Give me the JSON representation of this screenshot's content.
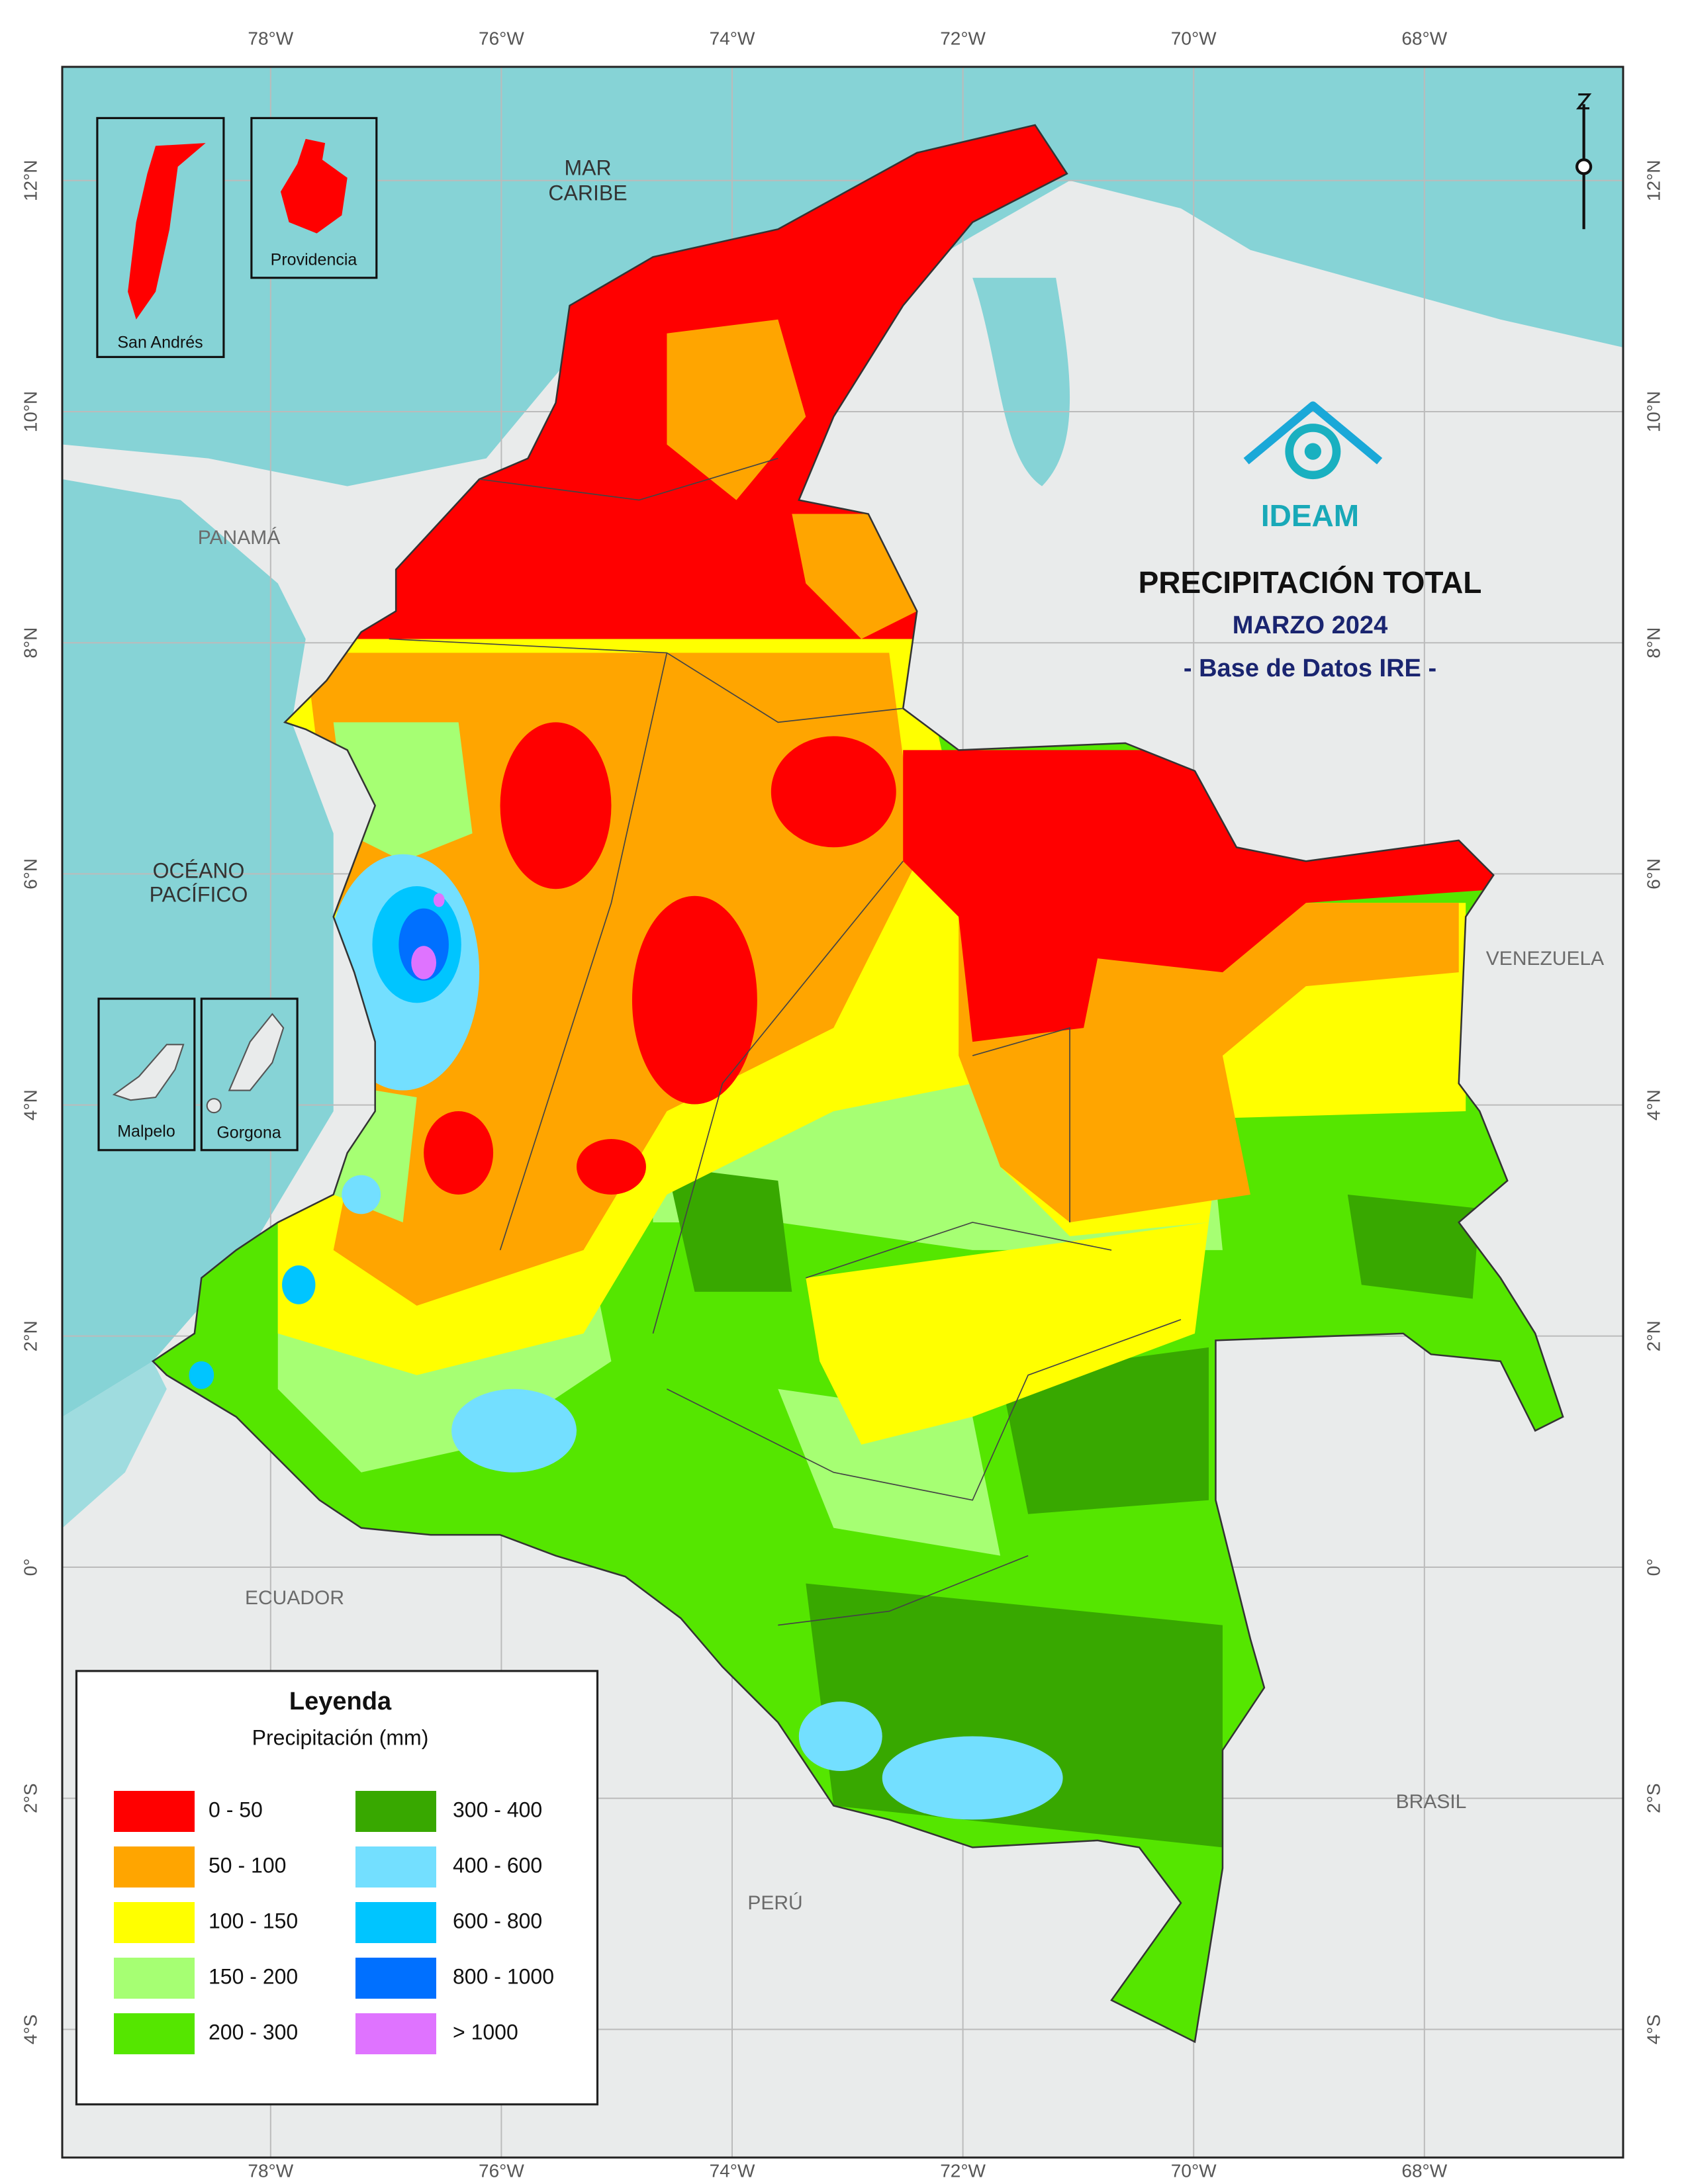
{
  "map": {
    "title": "PRECIPITACIÓN TOTAL",
    "subtitle": "MARZO 2024",
    "source": "- Base de Datos IRE -",
    "logo": "IDEAM",
    "lon_ticks": [
      {
        "value": -78,
        "label": "78°W"
      },
      {
        "value": -76,
        "label": "76°W"
      },
      {
        "value": -74,
        "label": "74°W"
      },
      {
        "value": -72,
        "label": "72°W"
      },
      {
        "value": -70,
        "label": "70°W"
      },
      {
        "value": -68,
        "label": "68°W"
      }
    ],
    "lat_ticks": [
      {
        "value": 12,
        "label": "12°N"
      },
      {
        "value": 10,
        "label": "10°N"
      },
      {
        "value": 8,
        "label": "8°N"
      },
      {
        "value": 6,
        "label": "6°N"
      },
      {
        "value": 4,
        "label": "4°N"
      },
      {
        "value": 2,
        "label": "2°N"
      },
      {
        "value": 0,
        "label": "0°"
      },
      {
        "value": -2,
        "label": "2°S"
      },
      {
        "value": -4,
        "label": "4°S"
      }
    ],
    "caribbean": [
      "MAR",
      "CARIBE"
    ],
    "pacific": [
      "OCÉANO",
      "PACÍFICO"
    ],
    "countries": [
      "PANAMÁ",
      "VENEZUELA",
      "ECUADOR",
      "PERÚ",
      "BRASIL"
    ],
    "insets": [
      "San Andrés",
      "Providencia",
      "Malpelo",
      "Gorgona"
    ],
    "legend": {
      "title": "Leyenda",
      "subtitle": "Precipitación (mm)",
      "items": [
        {
          "label": "0 - 50",
          "color": "#ff0000"
        },
        {
          "label": "50 - 100",
          "color": "#ffa500"
        },
        {
          "label": "100 - 150",
          "color": "#ffff00"
        },
        {
          "label": "150 - 200",
          "color": "#a6ff73"
        },
        {
          "label": "200 - 300",
          "color": "#55e600"
        },
        {
          "label": "300 - 400",
          "color": "#38a800"
        },
        {
          "label": "400 - 600",
          "color": "#73dfff"
        },
        {
          "label": "600 - 800",
          "color": "#00c5ff"
        },
        {
          "label": "800 - 1000",
          "color": "#0070ff"
        },
        {
          "label": "> 1000",
          "color": "#df73ff"
        }
      ]
    }
  }
}
